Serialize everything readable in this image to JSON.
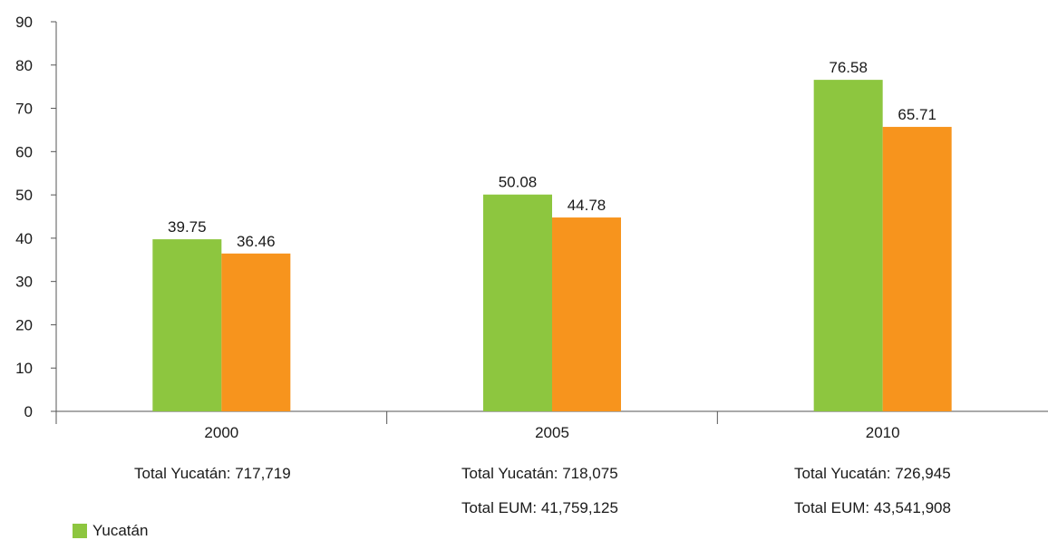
{
  "chart_data": {
    "type": "bar",
    "categories": [
      "2000",
      "2005",
      "2010"
    ],
    "series": [
      {
        "name": "Yucatán",
        "color": "#8dc63f",
        "values": [
          39.75,
          50.08,
          76.58
        ]
      },
      {
        "color": "#f7941d",
        "values": [
          36.46,
          44.78,
          65.71
        ]
      }
    ],
    "value_labels": [
      [
        "39.75",
        "50.08",
        "76.58"
      ],
      [
        "36.46",
        "44.78",
        "65.71"
      ]
    ],
    "ylim": [
      0,
      90
    ],
    "yticks": [
      "0",
      "10",
      "20",
      "30",
      "40",
      "50",
      "60",
      "70",
      "80",
      "90"
    ],
    "grid": false,
    "legend_position": "bottom-left"
  },
  "footer": {
    "totals_yucatan": [
      "Total Yucatán: 717,719",
      "Total Yucatán: 718,075",
      "Total Yucatán: 726,945"
    ],
    "totals_eum_2005": "Total EUM: 41,759,125",
    "totals_eum_2010": "Total EUM: 43,541,908"
  },
  "legend": {
    "yucatan_label": "Yucatán"
  }
}
